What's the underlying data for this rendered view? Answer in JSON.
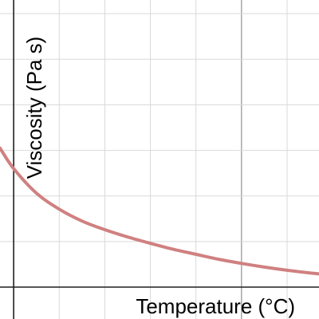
{
  "chart_data": {
    "type": "line",
    "title": "",
    "xlabel": "Temperature (°C)",
    "ylabel": "Viscosity (Pa s)",
    "grid": true,
    "xlim": [
      -0.3,
      6.7
    ],
    "ylim": [
      -0.7,
      6.3
    ],
    "x_major_gridline": 5,
    "series": [
      {
        "color": "#d08080",
        "x": [
          -0.3,
          0.0,
          0.5,
          1.0,
          1.5,
          2.0,
          2.5,
          3.0,
          3.5,
          4.0,
          4.5,
          5.0,
          5.5,
          6.0,
          6.5,
          6.7
        ],
        "y": [
          3.05,
          2.6,
          2.06,
          1.71,
          1.45,
          1.26,
          1.1,
          0.96,
          0.83,
          0.72,
          0.61,
          0.52,
          0.44,
          0.37,
          0.31,
          0.29
        ]
      }
    ]
  }
}
